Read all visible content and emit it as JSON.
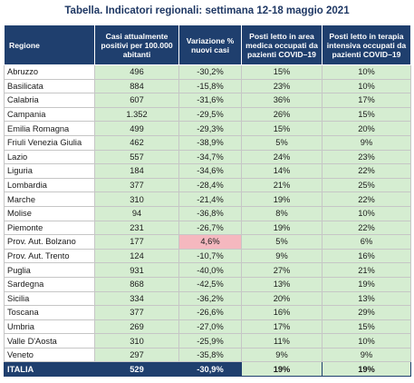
{
  "title": "Tabella. Indicatori regionali: settimana 12-18 maggio 2021",
  "headers": {
    "region": "Regione",
    "cases": "Casi attualmente positivi per 100.000 abitanti",
    "variation": "Variazione % nuovi casi",
    "medical": "Posti letto in area medica occupati da pazienti COVID–19",
    "icu": "Posti letto in terapia intensiva occupati da pazienti COVID–19"
  },
  "rows": [
    {
      "region": "Abruzzo",
      "cases": "496",
      "variation": "-30,2%",
      "medical": "15%",
      "icu": "10%"
    },
    {
      "region": "Basilicata",
      "cases": "884",
      "variation": "-15,8%",
      "medical": "23%",
      "icu": "10%"
    },
    {
      "region": "Calabria",
      "cases": "607",
      "variation": "-31,6%",
      "medical": "36%",
      "icu": "17%"
    },
    {
      "region": "Campania",
      "cases": "1.352",
      "variation": "-29,5%",
      "medical": "26%",
      "icu": "15%"
    },
    {
      "region": "Emilia Romagna",
      "cases": "499",
      "variation": "-29,3%",
      "medical": "15%",
      "icu": "20%"
    },
    {
      "region": "Friuli Venezia Giulia",
      "cases": "462",
      "variation": "-38,9%",
      "medical": "5%",
      "icu": "9%"
    },
    {
      "region": "Lazio",
      "cases": "557",
      "variation": "-34,7%",
      "medical": "24%",
      "icu": "23%"
    },
    {
      "region": "Liguria",
      "cases": "184",
      "variation": "-34,6%",
      "medical": "14%",
      "icu": "22%"
    },
    {
      "region": "Lombardia",
      "cases": "377",
      "variation": "-28,4%",
      "medical": "21%",
      "icu": "25%"
    },
    {
      "region": "Marche",
      "cases": "310",
      "variation": "-21,4%",
      "medical": "19%",
      "icu": "22%"
    },
    {
      "region": "Molise",
      "cases": "94",
      "variation": "-36,8%",
      "medical": "8%",
      "icu": "10%"
    },
    {
      "region": "Piemonte",
      "cases": "231",
      "variation": "-26,7%",
      "medical": "19%",
      "icu": "22%"
    },
    {
      "region": "Prov. Aut. Bolzano",
      "cases": "177",
      "variation": "4,6%",
      "medical": "5%",
      "icu": "6%",
      "highlight": true
    },
    {
      "region": "Prov. Aut. Trento",
      "cases": "124",
      "variation": "-10,7%",
      "medical": "9%",
      "icu": "16%"
    },
    {
      "region": "Puglia",
      "cases": "931",
      "variation": "-40,0%",
      "medical": "27%",
      "icu": "21%"
    },
    {
      "region": "Sardegna",
      "cases": "868",
      "variation": "-42,5%",
      "medical": "13%",
      "icu": "19%"
    },
    {
      "region": "Sicilia",
      "cases": "334",
      "variation": "-36,2%",
      "medical": "20%",
      "icu": "13%"
    },
    {
      "region": "Toscana",
      "cases": "377",
      "variation": "-26,6%",
      "medical": "16%",
      "icu": "29%"
    },
    {
      "region": "Umbria",
      "cases": "269",
      "variation": "-27,0%",
      "medical": "17%",
      "icu": "15%"
    },
    {
      "region": "Valle D'Aosta",
      "cases": "310",
      "variation": "-25,9%",
      "medical": "11%",
      "icu": "10%"
    },
    {
      "region": "Veneto",
      "cases": "297",
      "variation": "-35,8%",
      "medical": "9%",
      "icu": "9%"
    }
  ],
  "total": {
    "region": "ITALIA",
    "cases": "529",
    "variation": "-30,9%",
    "medical": "19%",
    "icu": "19%"
  },
  "colors": {
    "header": "#1f3f6e",
    "good": "#d5edd1",
    "bad": "#f5b8bf"
  }
}
